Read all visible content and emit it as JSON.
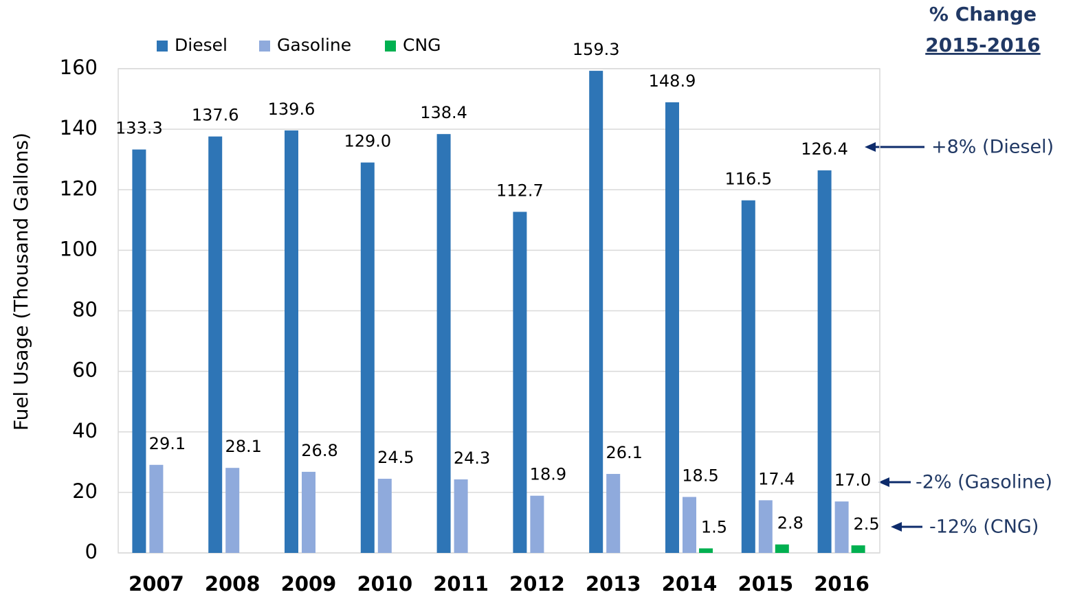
{
  "chart_data": {
    "type": "bar",
    "y_label": "Fuel Usage (Thousand Gallons)",
    "categories": [
      "2007",
      "2008",
      "2009",
      "2010",
      "2011",
      "2012",
      "2013",
      "2014",
      "2015",
      "2016"
    ],
    "series": [
      {
        "name": "Diesel",
        "color": "#2e75b6",
        "values": [
          133.3,
          137.6,
          139.6,
          129,
          138.4,
          112.7,
          159.3,
          148.9,
          116.5,
          126.4
        ],
        "value_labels": [
          "133.3",
          "137.6",
          "139.6",
          "129.0",
          "138.4",
          "112.7",
          "159.3",
          "148.9",
          "116.5",
          "126.4"
        ]
      },
      {
        "name": "Gasoline",
        "color": "#8faadc",
        "values": [
          29.1,
          28.1,
          26.8,
          24.5,
          24.3,
          18.9,
          26.1,
          18.5,
          17.4,
          17
        ],
        "value_labels": [
          "29.1",
          "28.1",
          "26.8",
          "24.5",
          "24.3",
          "18.9",
          "26.1",
          "18.5",
          "17.4",
          "17.0"
        ]
      },
      {
        "name": "CNG",
        "color": "#00b050",
        "values": [
          null,
          null,
          null,
          null,
          null,
          null,
          null,
          1.5,
          2.8,
          2.5
        ],
        "value_labels": [
          null,
          null,
          null,
          null,
          null,
          null,
          null,
          "1.5",
          "2.8",
          "2.5"
        ]
      }
    ],
    "ylim": [
      0,
      160
    ],
    "yticks": [
      0,
      20,
      40,
      60,
      80,
      100,
      120,
      140,
      160
    ],
    "grid": true,
    "legend": "top",
    "change_heading": [
      "% Change",
      "2015-2016"
    ],
    "annotations": [
      "+8% (Diesel)",
      "-2% (Gasoline)",
      "-12% (CNG)"
    ]
  }
}
